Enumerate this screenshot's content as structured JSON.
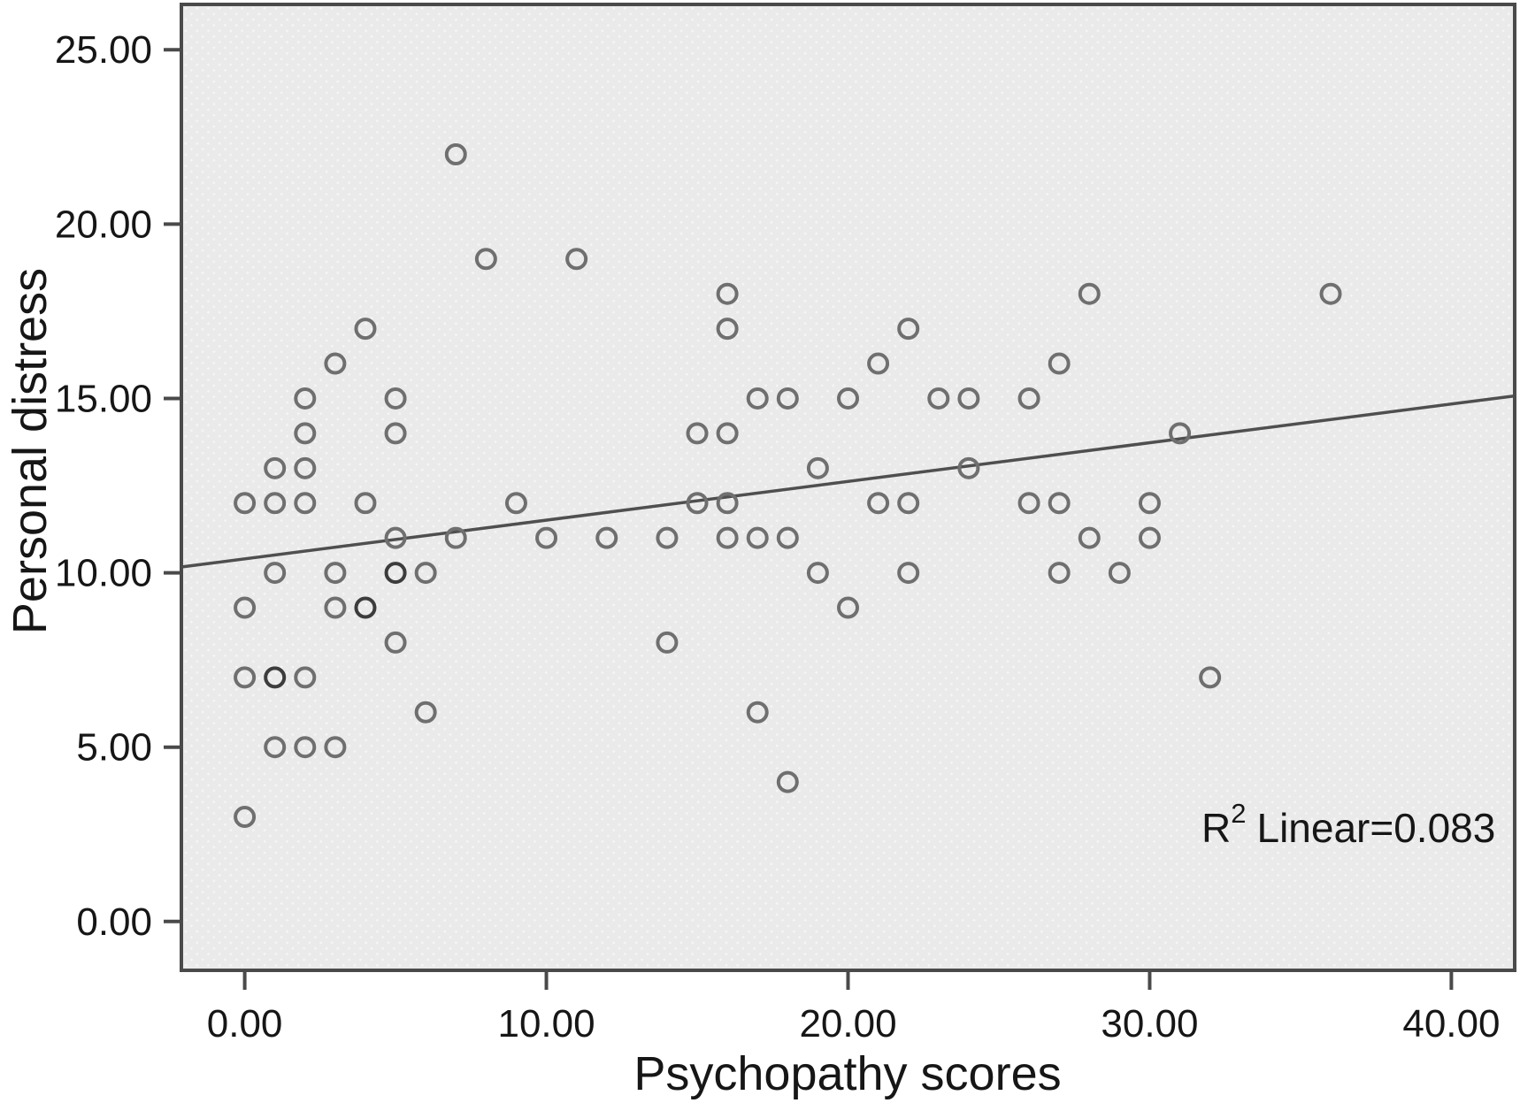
{
  "figure": {
    "x_axis": {
      "title": "Psychopathy scores",
      "tick_labels": [
        "0.00",
        "10.00",
        "20.00",
        "30.00",
        "40.00"
      ],
      "tick_values": [
        0,
        10,
        20,
        30,
        40
      ]
    },
    "y_axis": {
      "title": "Personal distress",
      "tick_labels": [
        "0.00",
        "5.00",
        "10.00",
        "15.00",
        "20.00",
        "25.00"
      ],
      "tick_values": [
        0,
        5,
        10,
        15,
        20,
        25
      ]
    },
    "annotation": {
      "r": "R",
      "exponent": "2",
      "text": "Linear=0.083"
    }
  },
  "chart_data": {
    "type": "scatter",
    "title": "",
    "xlabel": "Psychopathy scores",
    "ylabel": "Personal distress",
    "xlim": [
      -2.1,
      42.1
    ],
    "ylim": [
      -1.4,
      26.3
    ],
    "x_ticks": [
      0,
      10,
      20,
      30,
      40
    ],
    "y_ticks": [
      0,
      5,
      10,
      15,
      20,
      25
    ],
    "grid": false,
    "legend_position": "none",
    "points": [
      [
        0,
        3
      ],
      [
        0,
        7
      ],
      [
        0,
        9
      ],
      [
        0,
        12
      ],
      [
        1,
        5
      ],
      [
        1,
        7
      ],
      [
        1,
        7
      ],
      [
        1,
        10
      ],
      [
        1,
        12
      ],
      [
        1,
        13
      ],
      [
        2,
        5
      ],
      [
        2,
        7
      ],
      [
        2,
        12
      ],
      [
        2,
        13
      ],
      [
        2,
        14
      ],
      [
        2,
        15
      ],
      [
        3,
        5
      ],
      [
        3,
        9
      ],
      [
        3,
        10
      ],
      [
        3,
        16
      ],
      [
        4,
        9
      ],
      [
        4,
        9
      ],
      [
        4,
        12
      ],
      [
        4,
        17
      ],
      [
        5,
        8
      ],
      [
        5,
        10
      ],
      [
        5,
        10
      ],
      [
        5,
        11
      ],
      [
        5,
        14
      ],
      [
        5,
        15
      ],
      [
        6,
        6
      ],
      [
        6,
        10
      ],
      [
        7,
        11
      ],
      [
        7,
        22
      ],
      [
        8,
        19
      ],
      [
        9,
        12
      ],
      [
        10,
        11
      ],
      [
        11,
        19
      ],
      [
        12,
        11
      ],
      [
        14,
        8
      ],
      [
        14,
        11
      ],
      [
        15,
        12
      ],
      [
        15,
        14
      ],
      [
        16,
        11
      ],
      [
        16,
        12
      ],
      [
        16,
        14
      ],
      [
        16,
        17
      ],
      [
        16,
        18
      ],
      [
        17,
        6
      ],
      [
        17,
        11
      ],
      [
        17,
        15
      ],
      [
        18,
        4
      ],
      [
        18,
        11
      ],
      [
        18,
        15
      ],
      [
        19,
        10
      ],
      [
        19,
        13
      ],
      [
        20,
        9
      ],
      [
        20,
        15
      ],
      [
        21,
        12
      ],
      [
        21,
        16
      ],
      [
        22,
        10
      ],
      [
        22,
        12
      ],
      [
        22,
        17
      ],
      [
        23,
        15
      ],
      [
        24,
        13
      ],
      [
        24,
        15
      ],
      [
        26,
        12
      ],
      [
        26,
        15
      ],
      [
        27,
        10
      ],
      [
        27,
        12
      ],
      [
        27,
        16
      ],
      [
        28,
        11
      ],
      [
        28,
        18
      ],
      [
        29,
        10
      ],
      [
        30,
        11
      ],
      [
        30,
        12
      ],
      [
        31,
        14
      ],
      [
        32,
        7
      ],
      [
        36,
        18
      ]
    ],
    "regression": {
      "slope": 0.111,
      "intercept": 10.4,
      "r_squared": 0.083,
      "label": "R2 Linear=0.083"
    },
    "colors": {
      "marker": "#6f6f6f",
      "marker_overlap": "#3c3c3c",
      "regression_line": "#4f4f4f",
      "frame": "#4a4a4a",
      "plot_background": "#eaeaea",
      "plot_background_dot": "#f5f5f4",
      "text": "#161616"
    }
  }
}
